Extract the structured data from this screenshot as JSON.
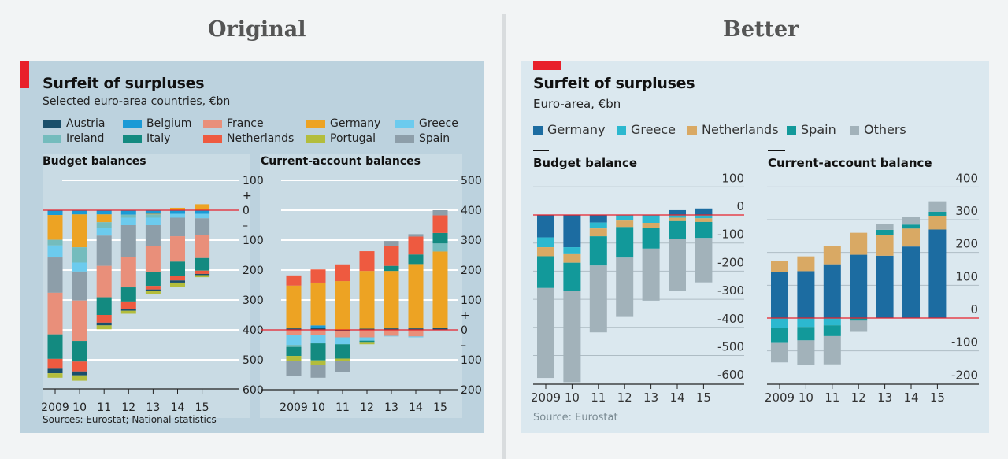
{
  "headers": {
    "original": "Original",
    "better": "Better"
  },
  "original": {
    "title": "Surfeit of surpluses",
    "subtitle": "Selected euro-area countries, €bn",
    "source": "Sources: Eurostat; National statistics",
    "legend": [
      {
        "name": "Austria",
        "color": "#1a4f6a"
      },
      {
        "name": "Belgium",
        "color": "#1a9ad6"
      },
      {
        "name": "France",
        "color": "#e98f7a"
      },
      {
        "name": "Germany",
        "color": "#eda323"
      },
      {
        "name": "Greece",
        "color": "#6ccbee"
      },
      {
        "name": "Ireland",
        "color": "#74bcbd"
      },
      {
        "name": "Italy",
        "color": "#138a80"
      },
      {
        "name": "Netherlands",
        "color": "#ee5a40"
      },
      {
        "name": "Portugal",
        "color": "#b3bd3c"
      },
      {
        "name": "Spain",
        "color": "#8d9ea9"
      }
    ]
  },
  "better": {
    "title": "Surfeit of surpluses",
    "subtitle": "Euro-area, €bn",
    "source": "Source: Eurostat",
    "legend": [
      {
        "name": "Germany",
        "color": "#1c6ca1"
      },
      {
        "name": "Greece",
        "color": "#2cb8cf"
      },
      {
        "name": "Netherlands",
        "color": "#d9a964"
      },
      {
        "name": "Spain",
        "color": "#12999a"
      },
      {
        "name": "Others",
        "color": "#a2b2ba"
      }
    ]
  },
  "chart_data": [
    {
      "type": "bar",
      "stacked": true,
      "title": "Budget balances",
      "panel": "Original",
      "categories": [
        "2009",
        "10",
        "11",
        "12",
        "13",
        "14",
        "15"
      ],
      "ylim": [
        -600,
        100
      ],
      "grid": true,
      "zero_line_color": "#e8202a",
      "y_ticks": [
        {
          "value": 100,
          "label": "100"
        },
        {
          "value": 50,
          "label": "+"
        },
        {
          "value": 0,
          "label": "0"
        },
        {
          "value": -50,
          "label": "–"
        },
        {
          "value": -100,
          "label": "100"
        },
        {
          "value": -200,
          "label": "200"
        },
        {
          "value": -300,
          "label": "300"
        },
        {
          "value": -400,
          "label": "400"
        },
        {
          "value": -500,
          "label": "500"
        },
        {
          "value": -600,
          "label": "600"
        }
      ],
      "series": [
        {
          "name": "Belgium",
          "values": [
            -16,
            -14,
            -14,
            -15,
            -12,
            -12,
            -12
          ]
        },
        {
          "name": "Germany",
          "values": [
            -83,
            -110,
            -26,
            0,
            -2,
            8,
            20
          ]
        },
        {
          "name": "Ireland",
          "values": [
            -19,
            -51,
            -20,
            -10,
            -11,
            0,
            0
          ]
        },
        {
          "name": "Greece",
          "values": [
            -40,
            -30,
            -25,
            -25,
            -25,
            -13,
            -15
          ]
        },
        {
          "name": "Spain",
          "values": [
            -118,
            -97,
            -101,
            -107,
            -70,
            -62,
            -55
          ]
        },
        {
          "name": "France",
          "values": [
            -139,
            -135,
            -105,
            -101,
            -86,
            -85,
            -78
          ]
        },
        {
          "name": "Italy",
          "values": [
            -82,
            -69,
            -59,
            -47,
            -47,
            -49,
            -42
          ]
        },
        {
          "name": "Netherlands",
          "values": [
            -33,
            -33,
            -26,
            -25,
            -12,
            -14,
            -11
          ]
        },
        {
          "name": "Austria",
          "values": [
            -15,
            -13,
            -9,
            -6,
            -5,
            -7,
            -4
          ]
        },
        {
          "name": "Portugal",
          "values": [
            -15,
            -18,
            -13,
            -10,
            -10,
            -14,
            -7
          ]
        }
      ]
    },
    {
      "type": "bar",
      "stacked": true,
      "title": "Current-account balances",
      "panel": "Original",
      "categories": [
        "2009",
        "10",
        "11",
        "12",
        "13",
        "14",
        "15"
      ],
      "ylim": [
        -200,
        500
      ],
      "grid": true,
      "zero_line_color": "#e8202a",
      "y_ticks": [
        {
          "value": 500,
          "label": "500"
        },
        {
          "value": 400,
          "label": "400"
        },
        {
          "value": 300,
          "label": "300"
        },
        {
          "value": 200,
          "label": "200"
        },
        {
          "value": 100,
          "label": "100"
        },
        {
          "value": 50,
          "label": "+"
        },
        {
          "value": 0,
          "label": "0"
        },
        {
          "value": -50,
          "label": "–"
        },
        {
          "value": -100,
          "label": "100"
        },
        {
          "value": -200,
          "label": "200"
        }
      ],
      "series": [
        {
          "name": "Austria",
          "values": [
            5,
            7,
            -5,
            4,
            5,
            5,
            8
          ]
        },
        {
          "name": "Belgium",
          "values": [
            0,
            8,
            0,
            0,
            0,
            0,
            0
          ]
        },
        {
          "name": "France",
          "values": [
            -18,
            -18,
            -20,
            -25,
            -20,
            -22,
            0
          ]
        },
        {
          "name": "Greece",
          "values": [
            -32,
            -27,
            -23,
            -11,
            -2,
            -3,
            0
          ]
        },
        {
          "name": "Germany",
          "values": [
            143,
            143,
            163,
            193,
            192,
            215,
            254
          ]
        },
        {
          "name": "Ireland",
          "values": [
            -7,
            0,
            0,
            0,
            0,
            0,
            27
          ]
        },
        {
          "name": "Italy",
          "values": [
            -30,
            -57,
            -48,
            -7,
            17,
            32,
            35
          ]
        },
        {
          "name": "Portugal",
          "values": [
            -18,
            -16,
            -9,
            -5,
            0,
            0,
            0
          ]
        },
        {
          "name": "Netherlands",
          "values": [
            34,
            44,
            56,
            66,
            66,
            60,
            59
          ]
        },
        {
          "name": "Spain",
          "values": [
            -48,
            -42,
            -37,
            0,
            17,
            8,
            17
          ]
        }
      ]
    },
    {
      "type": "bar",
      "stacked": true,
      "title": "Budget balance",
      "panel": "Better",
      "categories": [
        "2009",
        "10",
        "11",
        "12",
        "13",
        "14",
        "15"
      ],
      "ylim": [
        -600,
        100
      ],
      "grid": true,
      "zero_line_color": "#e8202a",
      "y_ticks": [
        {
          "value": 100,
          "label": "100"
        },
        {
          "value": 0,
          "label": "0"
        },
        {
          "value": -100,
          "label": "-100"
        },
        {
          "value": -200,
          "label": "-200"
        },
        {
          "value": -300,
          "label": "-300"
        },
        {
          "value": -400,
          "label": "-400"
        },
        {
          "value": -500,
          "label": "-500"
        },
        {
          "value": -600,
          "label": "-600"
        }
      ],
      "series": [
        {
          "name": "Germany",
          "values": [
            -80,
            -115,
            -27,
            0,
            0,
            17,
            23
          ]
        },
        {
          "name": "Greece",
          "values": [
            -35,
            -22,
            -21,
            -20,
            -28,
            -10,
            -12
          ]
        },
        {
          "name": "Netherlands",
          "values": [
            -32,
            -33,
            -28,
            -23,
            -19,
            -12,
            -13
          ]
        },
        {
          "name": "Spain",
          "values": [
            -113,
            -100,
            -104,
            -109,
            -73,
            -63,
            -57
          ]
        },
        {
          "name": "Others",
          "values": [
            -320,
            -325,
            -238,
            -211,
            -185,
            -185,
            -158
          ]
        }
      ]
    },
    {
      "type": "bar",
      "stacked": true,
      "title": "Current-account balance",
      "panel": "Better",
      "categories": [
        "2009",
        "10",
        "11",
        "12",
        "13",
        "14",
        "15"
      ],
      "ylim": [
        -200,
        400
      ],
      "grid": true,
      "zero_line_color": "#e8202a",
      "y_ticks": [
        {
          "value": 400,
          "label": "400"
        },
        {
          "value": 300,
          "label": "300"
        },
        {
          "value": 200,
          "label": "200"
        },
        {
          "value": 100,
          "label": "100"
        },
        {
          "value": 0,
          "label": "0"
        },
        {
          "value": -100,
          "label": "-100"
        },
        {
          "value": -200,
          "label": "-200"
        }
      ],
      "series": [
        {
          "name": "Germany",
          "values": [
            140,
            143,
            164,
            193,
            190,
            218,
            270
          ]
        },
        {
          "name": "Greece",
          "values": [
            -30,
            -27,
            -22,
            0,
            0,
            0,
            0
          ]
        },
        {
          "name": "Netherlands",
          "values": [
            35,
            45,
            56,
            67,
            63,
            55,
            42
          ]
        },
        {
          "name": "Spain",
          "values": [
            -46,
            -41,
            -33,
            -8,
            16,
            12,
            12
          ]
        },
        {
          "name": "Others",
          "values": [
            -59,
            -74,
            -86,
            -34,
            17,
            23,
            32
          ]
        }
      ]
    }
  ]
}
